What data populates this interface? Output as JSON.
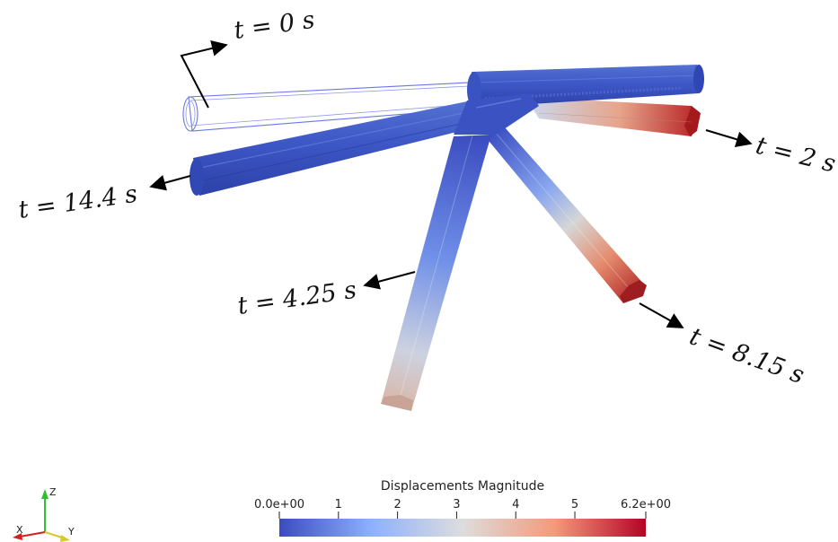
{
  "labels": {
    "t0": "t = 0 s",
    "t2": "t = 2 s",
    "t4": "t = 4.25 s",
    "t8": "t = 8.15 s",
    "t14": "t = 14.4 s"
  },
  "colorbar": {
    "title": "Displacements Magnitude",
    "ticks": [
      "0.0e+00",
      "1",
      "2",
      "3",
      "4",
      "5",
      "6.2e+00"
    ],
    "colors": [
      "#3b4cc0",
      "#8db0fe",
      "#dddddd",
      "#f49a7b",
      "#b40426"
    ]
  },
  "axes_triad": {
    "z": "Z",
    "x": "X",
    "y": "Y"
  }
}
